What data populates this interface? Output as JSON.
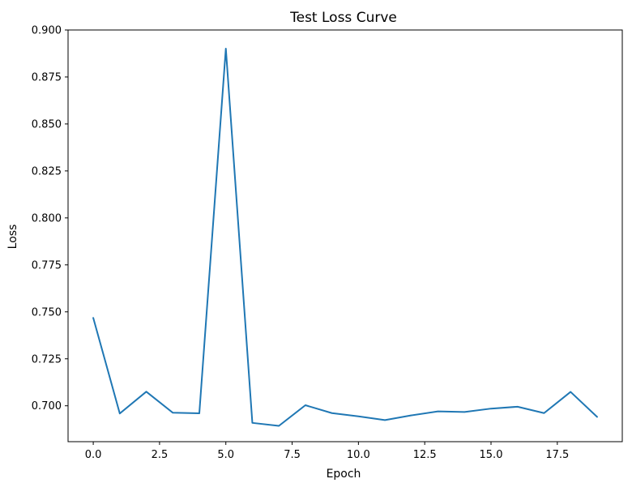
{
  "chart_data": {
    "type": "line",
    "title": "Test Loss Curve",
    "xlabel": "Epoch",
    "ylabel": "Loss",
    "xlim": [
      -0.95,
      19.95
    ],
    "ylim": [
      0.6809,
      0.9
    ],
    "grid": false,
    "legend": "none",
    "line_color": "#1f77b4",
    "x_ticks": [
      0.0,
      2.5,
      5.0,
      7.5,
      10.0,
      12.5,
      15.0,
      17.5
    ],
    "x_tick_labels": [
      "0.0",
      "2.5",
      "5.0",
      "7.5",
      "10.0",
      "12.5",
      "15.0",
      "17.5"
    ],
    "y_ticks": [
      0.7,
      0.725,
      0.75,
      0.775,
      0.8,
      0.825,
      0.85,
      0.875,
      0.9
    ],
    "y_tick_labels": [
      "0.700",
      "0.725",
      "0.750",
      "0.775",
      "0.800",
      "0.825",
      "0.850",
      "0.875",
      "0.900"
    ],
    "series": [
      {
        "x": [
          0,
          1,
          2,
          3,
          4,
          5,
          6,
          7,
          8,
          9,
          10,
          11,
          12,
          13,
          14,
          15,
          16,
          17,
          18,
          19
        ],
        "values": [
          0.7468,
          0.6959,
          0.7075,
          0.6963,
          0.696,
          0.8901,
          0.6909,
          0.6893,
          0.7003,
          0.6961,
          0.6944,
          0.6924,
          0.6949,
          0.697,
          0.6967,
          0.6985,
          0.6995,
          0.6961,
          0.7074,
          0.6941
        ]
      }
    ]
  }
}
